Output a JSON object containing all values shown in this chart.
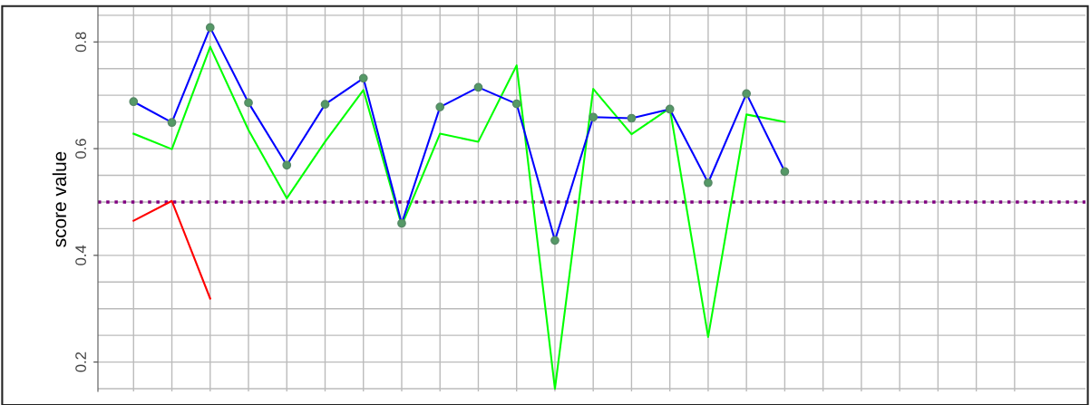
{
  "chart_data": {
    "type": "line",
    "ylabel": "score value",
    "categories": [
      null,
      null,
      null,
      null,
      null,
      null,
      null,
      null,
      null,
      null,
      null,
      null,
      null,
      null,
      null,
      null,
      null,
      null,
      null,
      null,
      null,
      null,
      null,
      null
    ],
    "series": [
      {
        "color": "#00ff00",
        "marker": "none",
        "values": [
          0.628,
          0.599,
          0.791,
          0.635,
          0.507,
          0.613,
          0.71,
          0.456,
          0.628,
          0.613,
          0.756,
          0.15,
          0.712,
          0.627,
          0.676,
          0.247,
          0.664,
          0.65,
          null,
          null,
          null,
          null,
          null,
          null
        ]
      },
      {
        "color": "#0000ff",
        "marker": "circle",
        "values": [
          0.688,
          0.649,
          0.827,
          0.686,
          0.569,
          0.683,
          0.732,
          0.46,
          0.678,
          0.715,
          0.684,
          0.428,
          0.659,
          0.657,
          0.674,
          0.536,
          0.703,
          0.557,
          null,
          null,
          null,
          null,
          null,
          null
        ]
      },
      {
        "color": "#ff0000",
        "marker": "none",
        "values": [
          0.465,
          0.502,
          0.319,
          null,
          null,
          null,
          null,
          null,
          null,
          null,
          null,
          null,
          null,
          null,
          null,
          null,
          null,
          null,
          null,
          null,
          null,
          null,
          null,
          null
        ]
      }
    ],
    "ref_lines": [
      {
        "axis": "y",
        "value": 0.5,
        "color": "#800080",
        "line_style": "dotted"
      }
    ],
    "ylim": [
      0.145,
      0.865
    ],
    "yticks": [
      0.2,
      0.4,
      0.6,
      0.8
    ],
    "grid": true,
    "tick_labels": "y"
  }
}
